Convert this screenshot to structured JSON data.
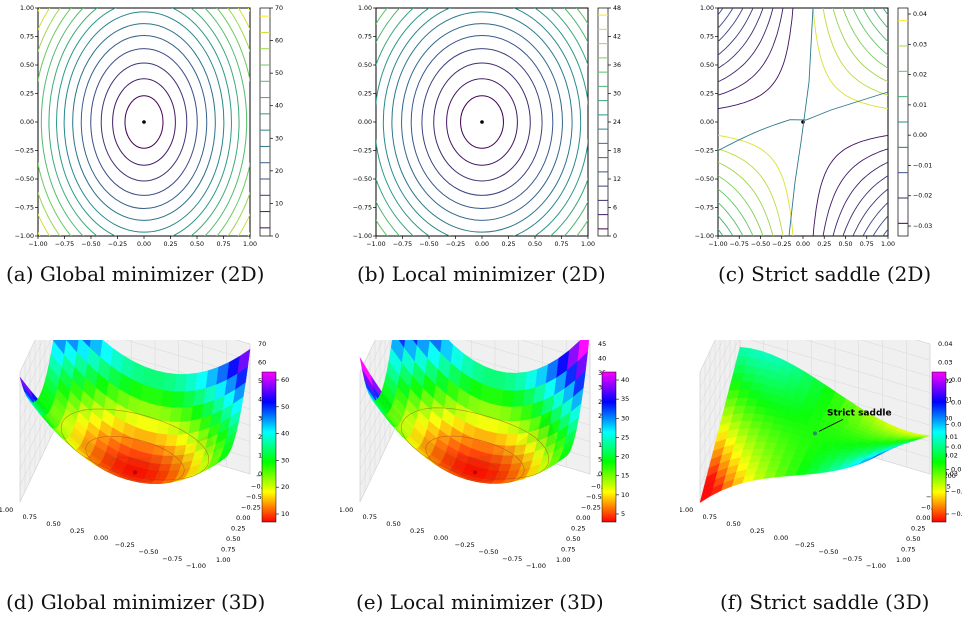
{
  "captions": {
    "a": "(a) Global minimizer (2D)",
    "b": "(b) Local minimizer (2D)",
    "c": "(c) Strict saddle (2D)",
    "d": "(d) Global minimizer (3D)",
    "e": "(e) Local minimizer (3D)",
    "f": "(f) Strict saddle (3D)"
  },
  "chart_data": [
    {
      "id": "a",
      "type": "contour",
      "x_ticks": [
        "−1.00",
        "−0.75",
        "−0.50",
        "−0.25",
        "0.00",
        "0.25",
        "0.50",
        "0.75",
        "1.00"
      ],
      "y_ticks": [
        "−1.00",
        "−0.75",
        "−0.50",
        "−0.25",
        "0.00",
        "0.25",
        "0.50",
        "0.75",
        "1.00"
      ],
      "xlim": [
        -1,
        1
      ],
      "ylim": [
        -1,
        1
      ],
      "colorbar_ticks": [
        "0",
        "10",
        "20",
        "30",
        "40",
        "50",
        "60",
        "70"
      ],
      "colorbar_range": [
        0,
        70
      ],
      "point": {
        "x": 0,
        "y": 0
      },
      "colormap": "viridis"
    },
    {
      "id": "b",
      "type": "contour",
      "x_ticks": [
        "−1.00",
        "−0.75",
        "−0.50",
        "−0.25",
        "0.00",
        "0.25",
        "0.50",
        "0.75",
        "1.00"
      ],
      "y_ticks": [
        "−1.00",
        "−0.75",
        "−0.50",
        "−0.25",
        "0.00",
        "0.25",
        "0.50",
        "0.75",
        "1.00"
      ],
      "xlim": [
        -1,
        1
      ],
      "ylim": [
        -1,
        1
      ],
      "colorbar_ticks": [
        "0",
        "6",
        "12",
        "18",
        "24",
        "30",
        "36",
        "42",
        "48"
      ],
      "colorbar_range": [
        0,
        48
      ],
      "point": {
        "x": 0,
        "y": 0
      },
      "colormap": "viridis"
    },
    {
      "id": "c",
      "type": "contour",
      "x_ticks": [
        "−1.00",
        "−0.75",
        "−0.50",
        "−0.25",
        "0.00",
        "0.25",
        "0.50",
        "0.75",
        "1.00"
      ],
      "y_ticks": [
        "−1.00",
        "−0.75",
        "−0.50",
        "−0.25",
        "0.00",
        "0.25",
        "0.50",
        "0.75",
        "1.00"
      ],
      "xlim": [
        -1,
        1
      ],
      "ylim": [
        -1,
        1
      ],
      "colorbar_ticks": [
        "0.04",
        "0.03",
        "0.02",
        "0.01",
        "0.00",
        "−0.01",
        "−0.02",
        "−0.03"
      ],
      "colorbar_range": [
        -0.03,
        0.045
      ],
      "point": {
        "x": 0,
        "y": 0
      },
      "colormap": "viridis"
    },
    {
      "id": "d",
      "type": "surface3d",
      "z_ticks": [
        "70",
        "60",
        "50",
        "40",
        "30",
        "20",
        "10",
        "0"
      ],
      "y_ticks": [
        "−1.00",
        "−0.75",
        "−0.50",
        "−0.25",
        "0.00",
        "0.25",
        "0.50",
        "0.75",
        "1.00"
      ],
      "x_ticks": [
        "1.00",
        "0.75",
        "0.50",
        "0.25",
        "0.00",
        "−0.25",
        "−0.50",
        "−0.75",
        "−1.00"
      ],
      "colorbar_ticks": [
        "60",
        "50",
        "40",
        "30",
        "20",
        "10"
      ],
      "colorbar_range": [
        0,
        65
      ],
      "colormap": "gist_rainbow"
    },
    {
      "id": "e",
      "type": "surface3d",
      "z_ticks": [
        "45",
        "40",
        "35",
        "30",
        "25",
        "20",
        "15",
        "10",
        "5",
        "0"
      ],
      "y_ticks": [
        "−1.00",
        "−0.75",
        "−0.50",
        "−0.25",
        "0.00",
        "0.25",
        "0.50",
        "0.75",
        "1.00"
      ],
      "x_ticks": [
        "1.00",
        "0.75",
        "0.50",
        "0.25",
        "0.00",
        "−0.25",
        "−0.50",
        "−0.75",
        "−1.00"
      ],
      "colorbar_ticks": [
        "40",
        "35",
        "30",
        "25",
        "20",
        "15",
        "10",
        "5"
      ],
      "colorbar_range": [
        0,
        44
      ],
      "colormap": "gist_rainbow"
    },
    {
      "id": "f",
      "type": "surface3d",
      "z_ticks": [
        "0.04",
        "0.03",
        "0.02",
        "0.01",
        "0.00",
        "−0.01",
        "−0.02",
        "−0.03"
      ],
      "y_ticks": [
        "−1.00",
        "−0.75",
        "−0.50",
        "−0.25",
        "0.00",
        "0.25",
        "0.50",
        "0.75",
        "1.00"
      ],
      "x_ticks": [
        "1.00",
        "0.75",
        "0.50",
        "0.25",
        "0.00",
        "−0.25",
        "−0.50",
        "−0.75",
        "−1.00"
      ],
      "colorbar_ticks": [
        "0.0",
        "0.0",
        "0.0",
        "0.0",
        "0.0",
        "−0.",
        "−0."
      ],
      "annotation": "Strict saddle",
      "colormap": "gist_rainbow"
    }
  ]
}
